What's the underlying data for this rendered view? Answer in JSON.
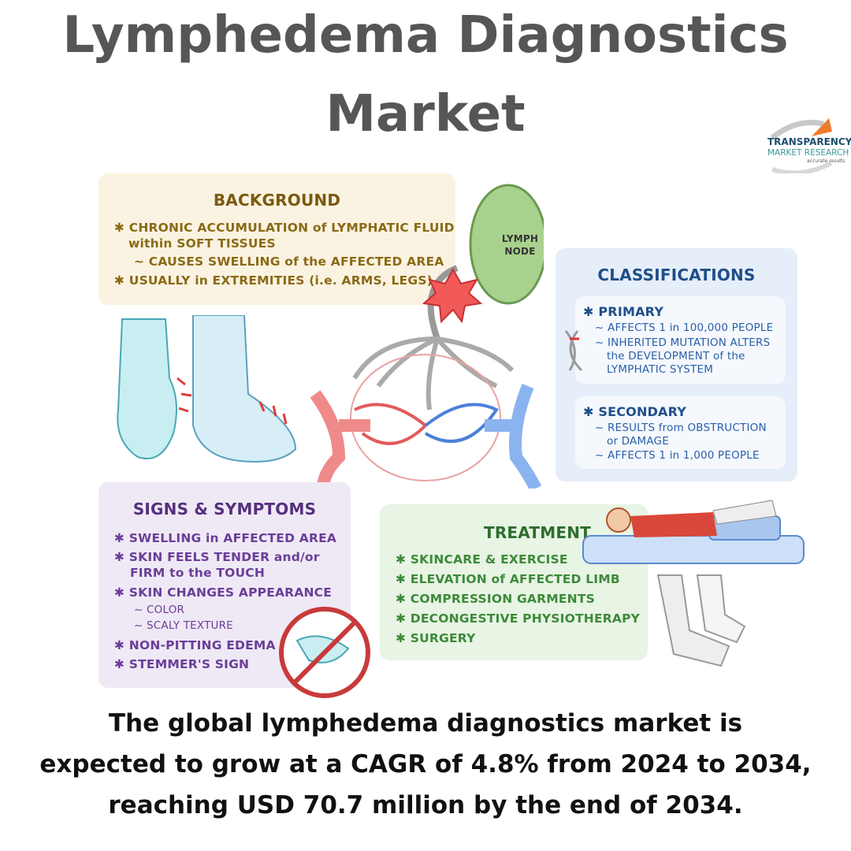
{
  "title": {
    "line1": "Lymphedema Diagnostics",
    "line2": "Market"
  },
  "logo": {
    "line1": "TRANSPARENCY",
    "line2": "MARKET RESEARCH",
    "tagline": "accurate results"
  },
  "background": {
    "title": "BACKGROUND",
    "items": [
      "✱ CHRONIC ACCUMULATION of LYMPHATIC FLUID",
      "within SOFT TISSUES",
      "~ CAUSES SWELLING of the AFFECTED AREA",
      "✱ USUALLY in EXTREMITIES (i.e. ARMS, LEGS)"
    ]
  },
  "lymph_node": {
    "label1": "LYMPH",
    "label2": "NODE"
  },
  "classifications": {
    "title": "CLASSIFICATIONS",
    "primary": {
      "title": "✱ PRIMARY",
      "items": [
        "~ AFFECTS 1 in 100,000 PEOPLE",
        "~ INHERITED MUTATION ALTERS",
        "the DEVELOPMENT of the",
        "LYMPHATIC SYSTEM"
      ]
    },
    "secondary": {
      "title": "✱ SECONDARY",
      "items": [
        "~ RESULTS from OBSTRUCTION",
        "or DAMAGE",
        "~ AFFECTS 1 in 1,000 PEOPLE"
      ]
    }
  },
  "signs": {
    "title": "SIGNS & SYMPTOMS",
    "items": [
      "✱ SWELLING in AFFECTED AREA",
      "✱ SKIN FEELS TENDER and/or",
      "FIRM to the TOUCH",
      "✱ SKIN CHANGES APPEARANCE",
      "~ COLOR",
      "~ SCALY TEXTURE",
      "✱ NON-PITTING EDEMA",
      "✱ STEMMER'S SIGN"
    ]
  },
  "treatment": {
    "title": "TREATMENT",
    "items": [
      "✱ SKINCARE & EXERCISE",
      "✱ ELEVATION of AFFECTED LIMB",
      "✱ COMPRESSION GARMENTS",
      "✱ DECONGESTIVE PHYSIOTHERAPY",
      "✱ SURGERY"
    ]
  },
  "footer": {
    "line1": "The global lymphedema diagnostics market is",
    "line2": "expected to grow at a CAGR of 4.8% from 2024 to 2034,",
    "line3": "reaching USD 70.7 million by the end of 2034."
  },
  "colors": {
    "background_box": "#faf3e2",
    "background_text": "#8a6a16",
    "class_box": "#e6eef9",
    "class_text": "#2a5fa8",
    "signs_box": "#efe9f5",
    "signs_text": "#6a3e98",
    "treat_box": "#e8f4e4",
    "treat_text": "#3c8a3a"
  }
}
